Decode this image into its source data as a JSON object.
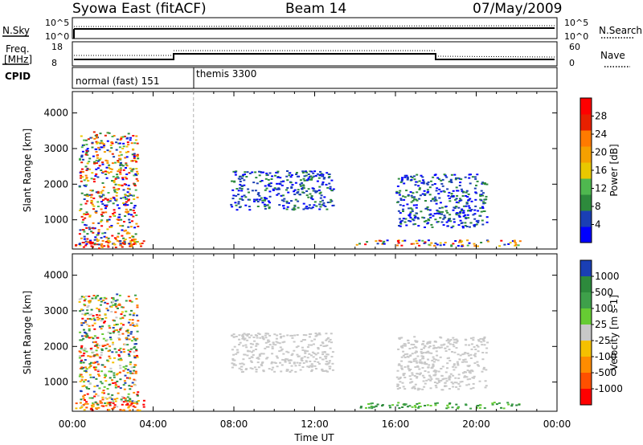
{
  "header": {
    "station": "Syowa East (fitACF)",
    "beam": "Beam 14",
    "date": "07/May/2009"
  },
  "strip": {
    "nsky_label": "N.Sky",
    "nsearch_label": "N.Search",
    "nsky_ticks": [
      "10^5",
      "10^0"
    ],
    "nsearch_ticks": [
      "10^5",
      "10^0"
    ],
    "freq_label": [
      "Freq.",
      "[MHz]"
    ],
    "freq_ticks": [
      "18",
      "8"
    ],
    "nave_label": "Nave",
    "nave_ticks": [
      "60",
      "0"
    ],
    "cpid_label": "CPID",
    "cpid_modes": [
      {
        "name": "normal (fast) 151",
        "start_hr": 0,
        "end_hr": 6
      },
      {
        "name": "themis 3300",
        "start_hr": 6,
        "end_hr": 24
      }
    ]
  },
  "chart_data": [
    {
      "type": "heatmap",
      "title": "",
      "xlabel": "Time UT",
      "ylabel": "Slant Range [km]",
      "x_ticks": [
        "00:00",
        "04:00",
        "08:00",
        "12:00",
        "16:00",
        "20:00",
        "00:00"
      ],
      "x_tick_hours": [
        0,
        4,
        8,
        12,
        16,
        20,
        24
      ],
      "xlim_hours": [
        0,
        24
      ],
      "ylim": [
        180,
        4600
      ],
      "y_ticks": [
        1000,
        2000,
        3000,
        4000
      ],
      "colorbar": {
        "label": "Power [dB]",
        "ticks": [
          "4",
          "8",
          "12",
          "16",
          "20",
          "24",
          "28"
        ],
        "bands": [
          "#0000ff",
          "#1a3fb4",
          "#2d8a3c",
          "#4fb84f",
          "#e8c800",
          "#f5a000",
          "#ff7a00",
          "#e82000",
          "#ff0000"
        ],
        "range": [
          0,
          30
        ]
      },
      "scatter_regions": [
        {
          "t0": 0.1,
          "t1": 3.5,
          "r0": 220,
          "r1": 520,
          "value_class": "high",
          "note": ""
        },
        {
          "t0": 0.3,
          "t1": 3.2,
          "r0": 300,
          "r1": 3500,
          "value_class": "mixed"
        },
        {
          "t0": 7.8,
          "t1": 12.9,
          "r0": 1300,
          "r1": 2400,
          "value_class": "low"
        },
        {
          "t0": 14.0,
          "t1": 22.2,
          "r0": 280,
          "r1": 450,
          "value_class": "mixed"
        },
        {
          "t0": 16.0,
          "t1": 20.5,
          "r0": 800,
          "r1": 2300,
          "value_class": "low"
        }
      ]
    },
    {
      "type": "heatmap",
      "title": "",
      "xlabel": "Time UT",
      "ylabel": "Slant Range [km]",
      "x_ticks": [
        "00:00",
        "04:00",
        "08:00",
        "12:00",
        "16:00",
        "20:00",
        "00:00"
      ],
      "x_tick_hours": [
        0,
        4,
        8,
        12,
        16,
        20,
        24
      ],
      "xlim_hours": [
        0,
        24
      ],
      "ylim": [
        180,
        4600
      ],
      "y_ticks": [
        1000,
        2000,
        3000,
        4000
      ],
      "colorbar": {
        "label": "Velocity [m s-1]",
        "ticks": [
          "1000",
          "500",
          "100",
          "25",
          "-25",
          "-100",
          "-500",
          "-1000"
        ],
        "bands": [
          "#1a3fb4",
          "#2d8a3c",
          "#3ea04a",
          "#66cc33",
          "#c8c8c8",
          "#f5c000",
          "#ff8c00",
          "#ff5000",
          "#ff0000"
        ],
        "range": [
          -1000,
          1000
        ]
      },
      "scatter_regions": [
        {
          "t0": 0.1,
          "t1": 3.5,
          "r0": 220,
          "r1": 520,
          "value_class": "negative"
        },
        {
          "t0": 0.3,
          "t1": 3.2,
          "r0": 300,
          "r1": 3500,
          "value_class": "mixed"
        },
        {
          "t0": 7.8,
          "t1": 12.9,
          "r0": 1300,
          "r1": 2400,
          "value_class": "near_zero"
        },
        {
          "t0": 14.0,
          "t1": 22.2,
          "r0": 280,
          "r1": 450,
          "value_class": "positive"
        },
        {
          "t0": 16.0,
          "t1": 20.5,
          "r0": 800,
          "r1": 2300,
          "value_class": "near_zero"
        }
      ]
    }
  ],
  "colors": {
    "axis": "#000000",
    "divider": "#b0b0b0"
  }
}
